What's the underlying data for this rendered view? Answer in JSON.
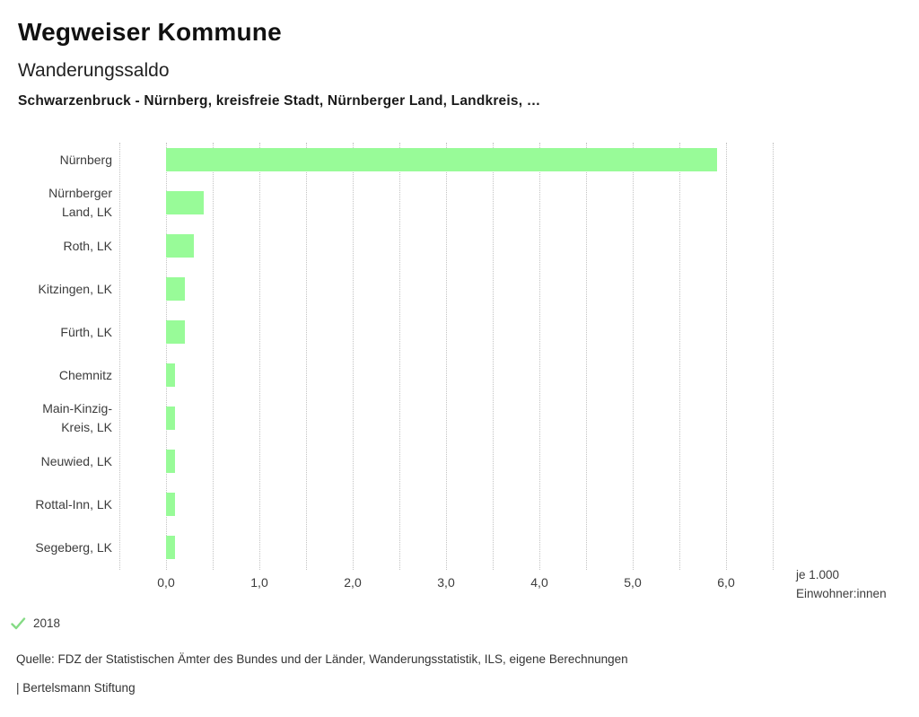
{
  "header": {
    "title": "Wegweiser Kommune",
    "subtitle": "Wanderungssaldo",
    "description": "Schwarzenbruck - Nürnberg, kreisfreie Stadt, Nürnberger Land, Landkreis, …"
  },
  "chart_data": {
    "type": "bar",
    "orientation": "horizontal",
    "title": "Wanderungssaldo",
    "categories": [
      "Nürnberg",
      "Nürnberger Land, LK",
      "Roth, LK",
      "Kitzingen, LK",
      "Fürth, LK",
      "Chemnitz",
      "Main-Kinzig-Kreis, LK",
      "Neuwied, LK",
      "Rottal-Inn, LK",
      "Segeberg, LK"
    ],
    "category_label_lines": [
      [
        "Nürnberg"
      ],
      [
        "Nürnberger",
        "Land, LK"
      ],
      [
        "Roth, LK"
      ],
      [
        "Kitzingen, LK"
      ],
      [
        "Fürth, LK"
      ],
      [
        "Chemnitz"
      ],
      [
        "Main-Kinzig-",
        "Kreis, LK"
      ],
      [
        "Neuwied, LK"
      ],
      [
        "Rottal-Inn, LK"
      ],
      [
        "Segeberg, LK"
      ]
    ],
    "series": [
      {
        "name": "2018",
        "values": [
          5.9,
          0.4,
          0.3,
          0.2,
          0.2,
          0.1,
          0.1,
          0.1,
          0.1,
          0.1
        ]
      }
    ],
    "xlabel_lines": [
      "je 1.000",
      "Einwohner:innen"
    ],
    "xticks": [
      "0,0",
      "1,0",
      "2,0",
      "3,0",
      "4,0",
      "5,0",
      "6,0"
    ],
    "xtick_values": [
      0,
      1,
      2,
      3,
      4,
      5,
      6
    ],
    "xlim": [
      -0.5,
      6.5
    ],
    "grid_step": 0.5,
    "grid_style": "dotted",
    "grid_on": true,
    "legend_position": "bottom-left",
    "bar_color": "#98FB98"
  },
  "legend": {
    "year_label": "2018",
    "check_icon": "checkmark",
    "check_color": "#85DB85"
  },
  "footer": {
    "source": "Quelle: FDZ der Statistischen Ämter des Bundes und der Länder, Wanderungsstatistik, ILS, eigene Berechnungen",
    "branding": "| Bertelsmann Stiftung"
  },
  "colors": {
    "bar": "#98FB98",
    "grid": "#C3C3C3",
    "text": "#3C3C3C",
    "title": "#111111"
  }
}
